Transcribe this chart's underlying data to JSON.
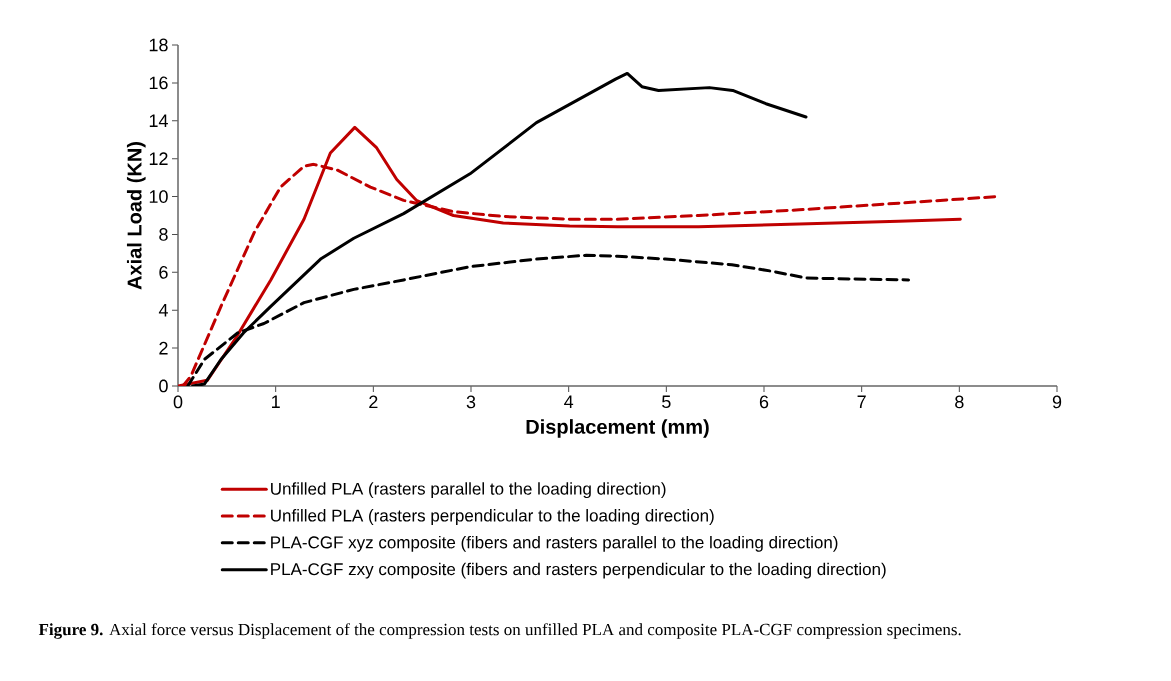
{
  "chart_data": {
    "type": "line",
    "xlabel": "Displacement (mm)",
    "ylabel": "Axial Load (KN)",
    "xlim": [
      0,
      9
    ],
    "ylim": [
      0,
      18
    ],
    "xticks": [
      0,
      1,
      2,
      3,
      4,
      5,
      6,
      7,
      8,
      9
    ],
    "yticks": [
      0,
      2,
      4,
      6,
      8,
      10,
      12,
      14,
      16,
      18
    ],
    "grid": false,
    "legend": "bottom",
    "marker": "none",
    "series": [
      {
        "name": "Unfilled PLA (rasters parallel to the loading direction)",
        "color": "#c00000",
        "line_style": "solid",
        "x": [
          0,
          0.3,
          0.6,
          0.95,
          1.29,
          1.56,
          1.81,
          2.03,
          2.24,
          2.44,
          2.82,
          3.33,
          4.01,
          4.5,
          5.33,
          6.36,
          7.38,
          8.01
        ],
        "values": [
          0,
          0.3,
          2.6,
          5.6,
          8.8,
          12.3,
          13.65,
          12.6,
          10.9,
          9.8,
          9.0,
          8.6,
          8.45,
          8.4,
          8.4,
          8.55,
          8.7,
          8.8
        ]
      },
      {
        "name": "Unfilled PLA (rasters perpendicular to the loading direction)",
        "color": "#c00000",
        "line_style": "dashed",
        "x": [
          0.05,
          0.13,
          0.44,
          0.78,
          1.05,
          1.29,
          1.39,
          1.63,
          1.97,
          2.31,
          2.82,
          3.33,
          4.01,
          4.5,
          5.33,
          6.36,
          7.38,
          8.39
        ],
        "values": [
          0,
          0.5,
          4.2,
          8.1,
          10.5,
          11.6,
          11.7,
          11.4,
          10.5,
          9.8,
          9.2,
          8.95,
          8.8,
          8.8,
          9.0,
          9.3,
          9.65,
          10.0
        ]
      },
      {
        "name": "PLA-CGF xyz composite (fibers and rasters parallel to the loading direction)",
        "color": "#000000",
        "line_style": "dashed",
        "x": [
          0.1,
          0.27,
          0.61,
          0.88,
          1.29,
          1.8,
          2.31,
          2.99,
          3.67,
          4.18,
          4.5,
          4.99,
          5.67,
          6.09,
          6.43,
          6.87,
          7.48
        ],
        "values": [
          0,
          1.4,
          2.8,
          3.3,
          4.4,
          5.1,
          5.6,
          6.3,
          6.7,
          6.9,
          6.85,
          6.7,
          6.4,
          6.05,
          5.7,
          5.65,
          5.6
        ]
      },
      {
        "name": "PLA-CGF zxy composite (fibers and rasters perpendicular to the loading direction)",
        "color": "#000000",
        "line_style": "solid",
        "x": [
          0.15,
          0.27,
          0.44,
          0.67,
          0.95,
          1.46,
          1.8,
          2.31,
          2.99,
          3.67,
          4.48,
          4.6,
          4.75,
          4.92,
          5.44,
          5.68,
          6.02,
          6.43
        ],
        "values": [
          0,
          0.1,
          1.4,
          2.8,
          4.2,
          6.7,
          7.8,
          9.1,
          11.2,
          13.9,
          16.2,
          16.5,
          15.8,
          15.6,
          15.75,
          15.6,
          14.9,
          14.2
        ]
      }
    ],
    "annotations": [
      "**Figure 9.** Axial force versus Displacement of the compression tests on unfilled PLA and composite PLA-CGF compression specimens."
    ]
  }
}
